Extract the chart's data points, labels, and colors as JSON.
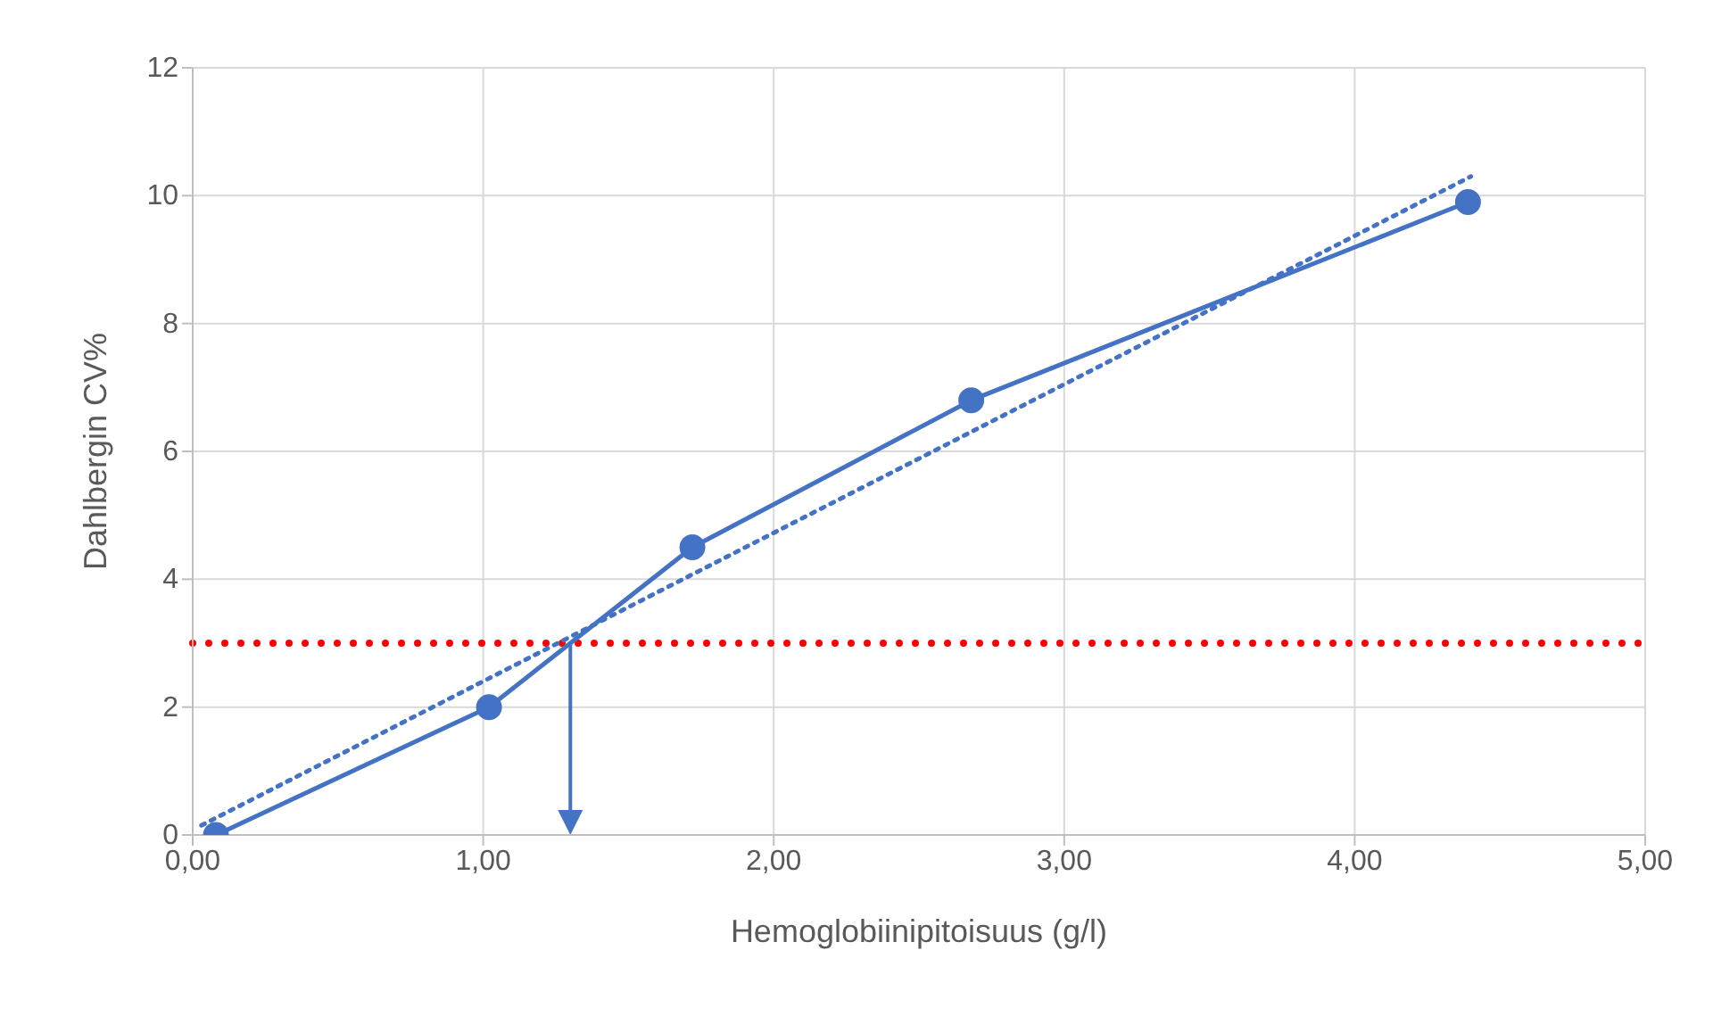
{
  "chart_data": {
    "type": "line",
    "xlabel": "Hemoglobiinipitoisuus (g/l)",
    "ylabel": "Dahlbergin CV%",
    "xlim": [
      0,
      5
    ],
    "xticks": [
      {
        "value": 0,
        "label": "0,00"
      },
      {
        "value": 1,
        "label": "1,00"
      },
      {
        "value": 2,
        "label": "2,00"
      },
      {
        "value": 3,
        "label": "3,00"
      },
      {
        "value": 4,
        "label": "4,00"
      },
      {
        "value": 5,
        "label": "5,00"
      }
    ],
    "ylim": [
      0,
      12
    ],
    "yticks": [
      0,
      2,
      4,
      6,
      8,
      10,
      12
    ],
    "grid": true,
    "series": [
      {
        "color": "#4472c4",
        "x": [
          0.08,
          1.02,
          1.72,
          2.68,
          4.39
        ],
        "values": [
          0,
          2,
          4.5,
          6.8,
          9.9
        ],
        "marker": "circle",
        "line_style": "solid"
      },
      {
        "type": "line",
        "color": "#4472c4",
        "x": [
          0.03,
          4.4
        ],
        "values": [
          0.15,
          10.3
        ],
        "marker": "none",
        "line_style": "dotted"
      }
    ],
    "ref_lines": [
      {
        "axis": "y",
        "value": 3,
        "color": "#ff0000",
        "line_style": "dotted"
      }
    ]
  }
}
